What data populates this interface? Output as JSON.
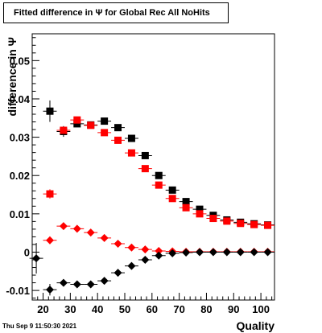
{
  "title": "Fitted difference in  Ψ  for Global Rec All NoHits",
  "datestamp": "Thu Sep  9 11:50:30 2021",
  "chart_data": {
    "type": "scatter",
    "title": "Fitted difference in  Ψ  for Global Rec All NoHits",
    "xlabel": "Quality",
    "ylabel": "difference in  Ψ",
    "xlim": [
      16,
      105
    ],
    "ylim": [
      -0.0125,
      0.057
    ],
    "x_ticks": [
      "20",
      "30",
      "40",
      "50",
      "60",
      "70",
      "80",
      "90",
      "100"
    ],
    "y_ticks": [
      "-0.01",
      "0",
      "0.01",
      "0.02",
      "0.03",
      "0.04",
      "0.05"
    ],
    "grid": false,
    "legend": "none",
    "series": [
      {
        "marker": "square",
        "color": "#000000",
        "x": [
          22.5,
          27.5,
          32.5,
          37.5,
          42.5,
          47.5,
          52.5,
          57.5,
          62.5,
          67.5,
          72.5,
          77.5,
          82.5,
          87.5,
          92.5,
          97.5,
          102.5
        ],
        "y": [
          0.0368,
          0.0315,
          0.0335,
          0.0332,
          0.0342,
          0.0325,
          0.0297,
          0.0252,
          0.02,
          0.0162,
          0.0132,
          0.0112,
          0.0096,
          0.0084,
          0.0078,
          0.0074,
          0.0071
        ],
        "yerr": [
          0.0028,
          0.0014,
          0.0006,
          0.0005,
          0.0004,
          0.0004,
          0.0003,
          0.0003,
          0.0003,
          0.0002,
          0.0002,
          0.0002,
          0.0002,
          0.0002,
          0.0002,
          0.0002,
          0.0002
        ]
      },
      {
        "marker": "square",
        "color": "#ff0000",
        "x": [
          22.5,
          27.5,
          32.5,
          37.5,
          42.5,
          47.5,
          52.5,
          57.5,
          62.5,
          67.5,
          72.5,
          77.5,
          82.5,
          87.5,
          92.5,
          97.5,
          102.5
        ],
        "y": [
          0.0152,
          0.0318,
          0.0345,
          0.0331,
          0.0312,
          0.0292,
          0.0259,
          0.0218,
          0.0175,
          0.014,
          0.0116,
          0.01,
          0.0088,
          0.0081,
          0.0075,
          0.0072,
          0.007
        ],
        "yerr": [
          0.0012,
          0.0008,
          0.0004,
          0.0004,
          0.0003,
          0.0003,
          0.0003,
          0.0003,
          0.0002,
          0.0002,
          0.0002,
          0.0002,
          0.0002,
          0.0002,
          0.0002,
          0.0002,
          0.0002
        ]
      },
      {
        "marker": "diamond",
        "color": "#ff0000",
        "x": [
          22.5,
          27.5,
          32.5,
          37.5,
          42.5,
          47.5,
          52.5,
          57.5,
          62.5,
          67.5,
          72.5,
          77.5,
          82.5,
          87.5,
          92.5,
          97.5,
          102.5
        ],
        "y": [
          0.0031,
          0.0068,
          0.0061,
          0.0051,
          0.0037,
          0.0022,
          0.0012,
          0.0007,
          0.0003,
          0.0002,
          0.0001,
          0.0001,
          0.0001,
          0.0001,
          0.0001,
          0.0001,
          0.0001
        ],
        "yerr": [
          0.001,
          0.0005,
          0.0003,
          0.0002,
          0.0002,
          0.0002,
          0.0001,
          0.0001,
          0.0001,
          0.0001,
          0.0001,
          0.0001,
          0.0001,
          0.0001,
          0.0001,
          0.0001,
          0.0001
        ]
      },
      {
        "marker": "diamond",
        "color": "#000000",
        "x": [
          17.5,
          22.5,
          27.5,
          32.5,
          37.5,
          42.5,
          47.5,
          52.5,
          57.5,
          62.5,
          67.5,
          72.5,
          77.5,
          82.5,
          87.5,
          92.5,
          97.5,
          102.5
        ],
        "y": [
          -0.0016,
          -0.0098,
          -0.008,
          -0.0084,
          -0.0084,
          -0.0075,
          -0.0054,
          -0.0036,
          -0.002,
          -0.0009,
          -0.0003,
          -0.0001,
          0.0,
          0.0,
          0.0,
          0.0,
          0.0,
          0.0
        ],
        "yerr": [
          0.004,
          0.0015,
          0.0007,
          0.0005,
          0.0004,
          0.0003,
          0.0003,
          0.0003,
          0.0002,
          0.0002,
          0.0002,
          0.0001,
          0.0001,
          0.0001,
          0.0001,
          0.0001,
          0.0001,
          0.0001
        ]
      }
    ]
  }
}
